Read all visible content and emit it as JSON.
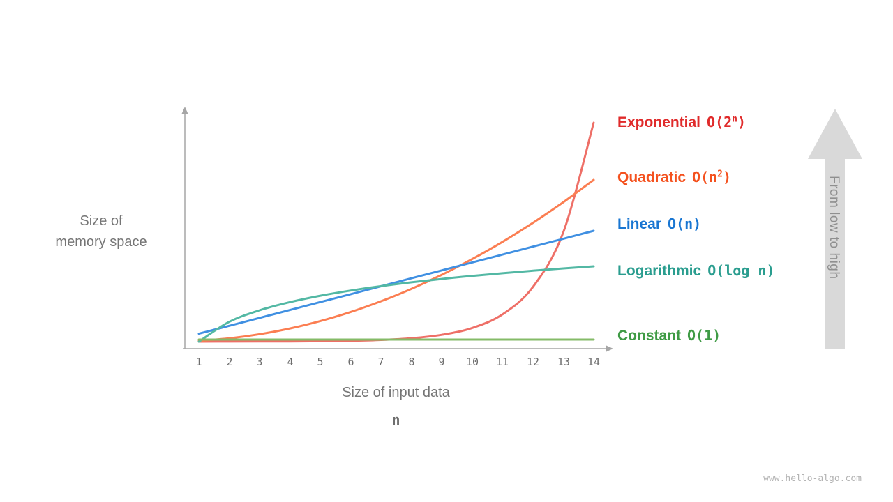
{
  "page": {
    "watermark": "www.hello-algo.com"
  },
  "chart_data": {
    "type": "line",
    "title": "",
    "xlabel": "Size of input data",
    "xlabel_symbol": "n",
    "ylabel": "Size of memory space",
    "ylabel_lines": [
      "Size of",
      "memory space"
    ],
    "arrow_label": "From low to high",
    "x": [
      1,
      2,
      3,
      4,
      5,
      6,
      7,
      8,
      9,
      10,
      11,
      12,
      13,
      14
    ],
    "x_range": [
      1,
      14
    ],
    "grid": false,
    "legend_position": "right",
    "series": [
      {
        "name": "Exponential",
        "formula_pre": "O(2",
        "formula_sup": "n",
        "formula_post": ")",
        "label_color": "#e02b2b",
        "line_color": "#ee6f67",
        "values": [
          2,
          4,
          8,
          16,
          32,
          64,
          128,
          256,
          512,
          1024,
          2048,
          4096,
          8192,
          16384
        ]
      },
      {
        "name": "Quadratic",
        "formula_pre": "O(n",
        "formula_sup": "2",
        "formula_post": ")",
        "label_color": "#f4511e",
        "line_color": "#fb7e52",
        "values": [
          1,
          4,
          9,
          16,
          25,
          36,
          49,
          64,
          81,
          100,
          121,
          144,
          169,
          196
        ]
      },
      {
        "name": "Linear",
        "formula_pre": "O(n)",
        "formula_sup": "",
        "formula_post": "",
        "label_color": "#1976d2",
        "line_color": "#4090e2",
        "values": [
          1,
          2,
          3,
          4,
          5,
          6,
          7,
          8,
          9,
          10,
          11,
          12,
          13,
          14
        ]
      },
      {
        "name": "Logarithmic",
        "formula_pre": "O(log n)",
        "formula_sup": "",
        "formula_post": "",
        "label_color": "#2a9d8f",
        "line_color": "#53b8a4",
        "values": [
          0,
          1,
          1.585,
          2,
          2.322,
          2.585,
          2.807,
          3,
          3.17,
          3.322,
          3.459,
          3.585,
          3.7,
          3.807
        ]
      },
      {
        "name": "Constant",
        "formula_pre": "O(1)",
        "formula_sup": "",
        "formula_post": "",
        "label_color": "#3f9b45",
        "line_color": "#85bb68",
        "values": [
          1,
          1,
          1,
          1,
          1,
          1,
          1,
          1,
          1,
          1,
          1,
          1,
          1,
          1
        ]
      }
    ]
  }
}
